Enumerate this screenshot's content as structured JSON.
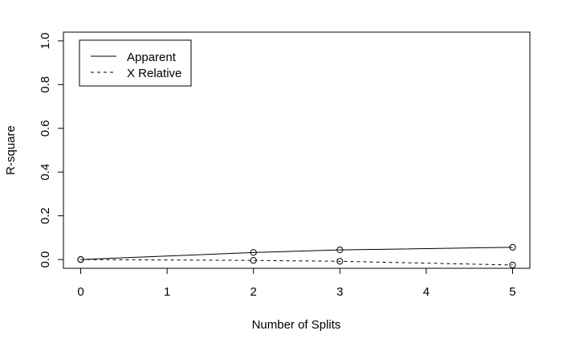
{
  "chart_data": {
    "type": "line",
    "title": "",
    "xlabel": "Number of Splits",
    "ylabel": "R-square",
    "x": [
      0,
      2,
      3,
      5
    ],
    "xlim": [
      -0.2,
      5.2
    ],
    "ylim": [
      -0.04,
      1.04
    ],
    "xticks": [
      "0",
      "1",
      "2",
      "3",
      "4",
      "5"
    ],
    "yticks": [
      "0.0",
      "0.2",
      "0.4",
      "0.6",
      "0.8",
      "1.0"
    ],
    "grid": false,
    "legend_position": "top-left",
    "series": [
      {
        "name": "Apparent",
        "values": [
          0.0,
          0.032,
          0.044,
          0.056
        ],
        "line_style": "solid",
        "marker": "open-circle",
        "color": "#000000"
      },
      {
        "name": "X Relative",
        "values": [
          0.0,
          -0.004,
          -0.008,
          -0.025
        ],
        "line_style": "dashed",
        "marker": "open-circle",
        "color": "#000000"
      }
    ]
  }
}
